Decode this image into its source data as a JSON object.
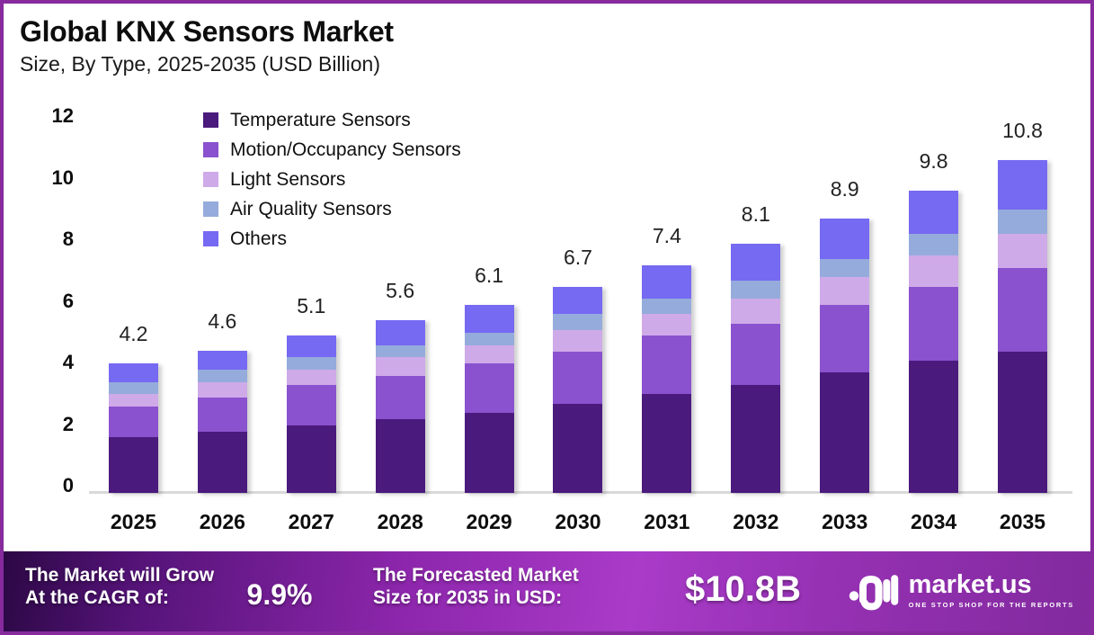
{
  "page": {
    "border_color": "#862a9e"
  },
  "header": {
    "title": "Global KNX Sensors Market",
    "subtitle": "Size, By Type, 2025-2035 (USD Billion)"
  },
  "chart_data": {
    "type": "bar",
    "stacked": true,
    "unit": "USD Billion",
    "grid": false,
    "legend_position": "top-left-inside",
    "categories": [
      "2025",
      "2026",
      "2027",
      "2028",
      "2029",
      "2030",
      "2031",
      "2032",
      "2033",
      "2034",
      "2035"
    ],
    "series": [
      {
        "name": "Temperature Sensors",
        "color": "#4a1a7d",
        "values": [
          1.8,
          2.0,
          2.2,
          2.4,
          2.6,
          2.9,
          3.2,
          3.5,
          3.9,
          4.3,
          4.6
        ]
      },
      {
        "name": "Motion/Occupancy Sensors",
        "color": "#8a52ce",
        "values": [
          1.0,
          1.1,
          1.3,
          1.4,
          1.6,
          1.7,
          1.9,
          2.0,
          2.2,
          2.4,
          2.7
        ]
      },
      {
        "name": "Light Sensors",
        "color": "#cfaae9",
        "values": [
          0.4,
          0.5,
          0.5,
          0.6,
          0.6,
          0.7,
          0.7,
          0.8,
          0.9,
          1.0,
          1.1
        ]
      },
      {
        "name": "Air Quality Sensors",
        "color": "#95abdc",
        "values": [
          0.4,
          0.4,
          0.4,
          0.4,
          0.4,
          0.5,
          0.5,
          0.6,
          0.6,
          0.7,
          0.8
        ]
      },
      {
        "name": "Others",
        "color": "#7669f2",
        "values": [
          0.6,
          0.6,
          0.7,
          0.8,
          0.9,
          0.9,
          1.1,
          1.2,
          1.3,
          1.4,
          1.6
        ]
      }
    ],
    "totals": [
      "4.2",
      "4.6",
      "5.1",
      "5.6",
      "6.1",
      "6.7",
      "7.4",
      "8.1",
      "8.9",
      "9.8",
      "10.8"
    ],
    "y_ticks": [
      0,
      2,
      4,
      6,
      8,
      10,
      12
    ],
    "ylim": [
      0,
      12
    ],
    "title": "Global KNX Sensors Market",
    "xlabel": "",
    "ylabel": ""
  },
  "banner": {
    "cagr": {
      "label_line1": "The Market will Grow",
      "label_line2": "At the CAGR of:",
      "value": "9.9%"
    },
    "forecast": {
      "label_line1": "The Forecasted Market",
      "label_line2": "Size for 2035 in USD:",
      "value": "$10.8B"
    },
    "brand": {
      "name": "market.us",
      "tagline": "ONE STOP SHOP FOR THE REPORTS"
    }
  }
}
